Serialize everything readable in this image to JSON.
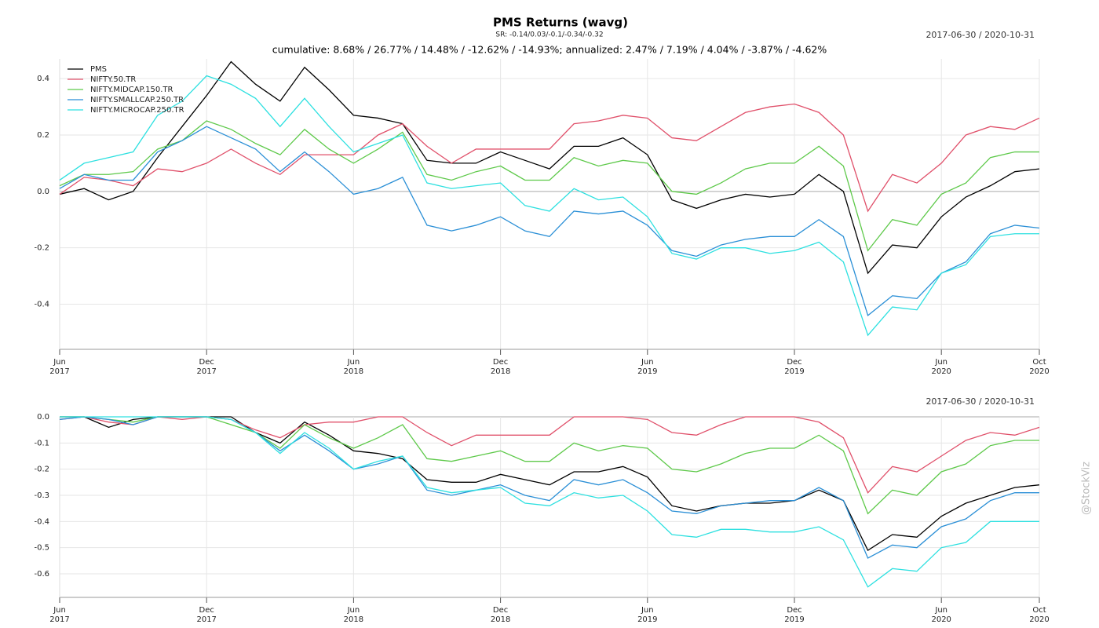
{
  "title": "PMS Returns (wavg)",
  "subtitle": "SR: -0.14/0.03/-0.1/-0.34/-0.32",
  "watermark": "@StockViz",
  "chart_data": [
    {
      "type": "line",
      "annotation": "cumulative: 8.68% / 26.77% / 14.48% / -12.62% / -14.93%; annualized: 2.47% / 7.19% / 4.04% / -3.87% / -4.62%",
      "date_range": "2017-06-30 / 2020-10-31",
      "legend": "upper left",
      "grid": true,
      "x": [
        "2017-06",
        "2017-07",
        "2017-08",
        "2017-09",
        "2017-10",
        "2017-11",
        "2017-12",
        "2018-01",
        "2018-02",
        "2018-03",
        "2018-04",
        "2018-05",
        "2018-06",
        "2018-07",
        "2018-08",
        "2018-09",
        "2018-10",
        "2018-11",
        "2018-12",
        "2019-01",
        "2019-02",
        "2019-03",
        "2019-04",
        "2019-05",
        "2019-06",
        "2019-07",
        "2019-08",
        "2019-09",
        "2019-10",
        "2019-11",
        "2019-12",
        "2020-01",
        "2020-02",
        "2020-03",
        "2020-04",
        "2020-05",
        "2020-06",
        "2020-07",
        "2020-08",
        "2020-09",
        "2020-10"
      ],
      "xlim": [
        "2017-06",
        "2020-10"
      ],
      "xticks": [
        {
          "value": "2017-06",
          "label": [
            "Jun",
            "2017"
          ]
        },
        {
          "value": "2017-12",
          "label": [
            "Dec",
            "2017"
          ]
        },
        {
          "value": "2018-06",
          "label": [
            "Jun",
            "2018"
          ]
        },
        {
          "value": "2018-12",
          "label": [
            "Dec",
            "2018"
          ]
        },
        {
          "value": "2019-06",
          "label": [
            "Jun",
            "2019"
          ]
        },
        {
          "value": "2019-12",
          "label": [
            "Dec",
            "2019"
          ]
        },
        {
          "value": "2020-06",
          "label": [
            "Jun",
            "2020"
          ]
        },
        {
          "value": "2020-10",
          "label": [
            "Oct",
            "2020"
          ]
        }
      ],
      "ylim": [
        -0.56,
        0.47
      ],
      "yticks": [
        -0.4,
        -0.2,
        {
          "value": 0,
          "label": "0.0"
        },
        0.2,
        0.4
      ],
      "series": [
        {
          "name": "PMS",
          "color": "#000000",
          "values": [
            -0.01,
            0.01,
            -0.03,
            0.0,
            0.12,
            0.23,
            0.34,
            0.46,
            0.38,
            0.32,
            0.44,
            0.36,
            0.27,
            0.26,
            0.24,
            0.11,
            0.1,
            0.1,
            0.14,
            0.11,
            0.08,
            0.16,
            0.16,
            0.19,
            0.13,
            -0.03,
            -0.06,
            -0.03,
            -0.01,
            -0.02,
            -0.01,
            0.06,
            0.0,
            -0.29,
            -0.19,
            -0.2,
            -0.09,
            -0.02,
            0.02,
            0.07,
            0.08
          ]
        },
        {
          "name": "NIFTY.50.TR",
          "color": "#e0506a",
          "values": [
            -0.01,
            0.05,
            0.04,
            0.02,
            0.08,
            0.07,
            0.1,
            0.15,
            0.1,
            0.06,
            0.13,
            0.13,
            0.13,
            0.2,
            0.24,
            0.16,
            0.1,
            0.15,
            0.15,
            0.15,
            0.15,
            0.24,
            0.25,
            0.27,
            0.26,
            0.19,
            0.18,
            0.23,
            0.28,
            0.3,
            0.31,
            0.28,
            0.2,
            -0.07,
            0.06,
            0.03,
            0.1,
            0.2,
            0.23,
            0.22,
            0.26
          ]
        },
        {
          "name": "NIFTY.MIDCAP.150.TR",
          "color": "#5ec94a",
          "values": [
            0.02,
            0.06,
            0.06,
            0.07,
            0.15,
            0.18,
            0.25,
            0.22,
            0.17,
            0.13,
            0.22,
            0.15,
            0.1,
            0.15,
            0.21,
            0.06,
            0.04,
            0.07,
            0.09,
            0.04,
            0.04,
            0.12,
            0.09,
            0.11,
            0.1,
            0.0,
            -0.01,
            0.03,
            0.08,
            0.1,
            0.1,
            0.16,
            0.09,
            -0.21,
            -0.1,
            -0.12,
            -0.01,
            0.03,
            0.12,
            0.14,
            0.14
          ]
        },
        {
          "name": "NIFTY.SMALLCAP.250.TR",
          "color": "#2a8fd6",
          "values": [
            0.01,
            0.06,
            0.04,
            0.04,
            0.14,
            0.18,
            0.23,
            0.19,
            0.15,
            0.07,
            0.14,
            0.07,
            -0.01,
            0.01,
            0.05,
            -0.12,
            -0.14,
            -0.12,
            -0.09,
            -0.14,
            -0.16,
            -0.07,
            -0.08,
            -0.07,
            -0.12,
            -0.21,
            -0.23,
            -0.19,
            -0.17,
            -0.16,
            -0.16,
            -0.1,
            -0.16,
            -0.44,
            -0.37,
            -0.38,
            -0.29,
            -0.25,
            -0.15,
            -0.12,
            -0.13
          ]
        },
        {
          "name": "NIFTY.MICROCAP.250.TR",
          "color": "#2de0e0",
          "values": [
            0.04,
            0.1,
            0.12,
            0.14,
            0.27,
            0.32,
            0.41,
            0.38,
            0.33,
            0.23,
            0.33,
            0.23,
            0.14,
            0.17,
            0.2,
            0.03,
            0.01,
            0.02,
            0.03,
            -0.05,
            -0.07,
            0.01,
            -0.03,
            -0.02,
            -0.09,
            -0.22,
            -0.24,
            -0.2,
            -0.2,
            -0.22,
            -0.21,
            -0.18,
            -0.25,
            -0.51,
            -0.41,
            -0.42,
            -0.29,
            -0.26,
            -0.16,
            -0.15,
            -0.15
          ]
        }
      ]
    },
    {
      "type": "line",
      "date_range": "2017-06-30 / 2020-10-31",
      "grid": true,
      "x": [
        "2017-06",
        "2017-07",
        "2017-08",
        "2017-09",
        "2017-10",
        "2017-11",
        "2017-12",
        "2018-01",
        "2018-02",
        "2018-03",
        "2018-04",
        "2018-05",
        "2018-06",
        "2018-07",
        "2018-08",
        "2018-09",
        "2018-10",
        "2018-11",
        "2018-12",
        "2019-01",
        "2019-02",
        "2019-03",
        "2019-04",
        "2019-05",
        "2019-06",
        "2019-07",
        "2019-08",
        "2019-09",
        "2019-10",
        "2019-11",
        "2019-12",
        "2020-01",
        "2020-02",
        "2020-03",
        "2020-04",
        "2020-05",
        "2020-06",
        "2020-07",
        "2020-08",
        "2020-09",
        "2020-10"
      ],
      "xlim": [
        "2017-06",
        "2020-10"
      ],
      "xticks": [
        {
          "value": "2017-06",
          "label": [
            "Jun",
            "2017"
          ]
        },
        {
          "value": "2017-12",
          "label": [
            "Dec",
            "2017"
          ]
        },
        {
          "value": "2018-06",
          "label": [
            "Jun",
            "2018"
          ]
        },
        {
          "value": "2018-12",
          "label": [
            "Dec",
            "2018"
          ]
        },
        {
          "value": "2019-06",
          "label": [
            "Jun",
            "2019"
          ]
        },
        {
          "value": "2019-12",
          "label": [
            "Dec",
            "2019"
          ]
        },
        {
          "value": "2020-06",
          "label": [
            "Jun",
            "2020"
          ]
        },
        {
          "value": "2020-10",
          "label": [
            "Oct",
            "2020"
          ]
        }
      ],
      "ylim": [
        -0.69,
        0.0
      ],
      "yticks": [
        -0.6,
        -0.5,
        -0.4,
        -0.3,
        -0.2,
        -0.1,
        {
          "value": 0,
          "label": "0.0"
        }
      ],
      "series": [
        {
          "color": "#000000",
          "values": [
            0,
            0,
            -0.04,
            -0.01,
            0,
            0,
            0,
            0,
            -0.06,
            -0.1,
            -0.02,
            -0.07,
            -0.13,
            -0.14,
            -0.16,
            -0.24,
            -0.25,
            -0.25,
            -0.22,
            -0.24,
            -0.26,
            -0.21,
            -0.21,
            -0.19,
            -0.23,
            -0.34,
            -0.36,
            -0.34,
            -0.33,
            -0.33,
            -0.32,
            -0.28,
            -0.32,
            -0.51,
            -0.45,
            -0.46,
            -0.38,
            -0.33,
            -0.3,
            -0.27,
            -0.26
          ]
        },
        {
          "color": "#e0506a",
          "values": [
            -0.01,
            0,
            -0.02,
            -0.03,
            0,
            -0.01,
            0,
            -0.01,
            -0.05,
            -0.08,
            -0.03,
            -0.02,
            -0.02,
            0,
            0,
            -0.06,
            -0.11,
            -0.07,
            -0.07,
            -0.07,
            -0.07,
            0,
            0,
            0,
            -0.01,
            -0.06,
            -0.07,
            -0.03,
            0,
            0,
            0,
            -0.02,
            -0.08,
            -0.29,
            -0.19,
            -0.21,
            -0.15,
            -0.09,
            -0.06,
            -0.07,
            -0.04
          ]
        },
        {
          "color": "#5ec94a",
          "values": [
            0,
            0,
            -0.01,
            -0.02,
            0,
            0,
            0,
            -0.03,
            -0.06,
            -0.12,
            -0.03,
            -0.08,
            -0.12,
            -0.08,
            -0.03,
            -0.16,
            -0.17,
            -0.15,
            -0.13,
            -0.17,
            -0.17,
            -0.1,
            -0.13,
            -0.11,
            -0.12,
            -0.2,
            -0.21,
            -0.18,
            -0.14,
            -0.12,
            -0.12,
            -0.07,
            -0.13,
            -0.37,
            -0.28,
            -0.3,
            -0.21,
            -0.18,
            -0.11,
            -0.09,
            -0.09
          ]
        },
        {
          "color": "#2a8fd6",
          "values": [
            -0.01,
            0,
            -0.01,
            -0.03,
            0,
            0,
            0,
            -0.01,
            -0.06,
            -0.13,
            -0.07,
            -0.13,
            -0.2,
            -0.18,
            -0.15,
            -0.28,
            -0.3,
            -0.28,
            -0.26,
            -0.3,
            -0.32,
            -0.24,
            -0.26,
            -0.24,
            -0.29,
            -0.36,
            -0.37,
            -0.34,
            -0.33,
            -0.32,
            -0.32,
            -0.27,
            -0.32,
            -0.54,
            -0.49,
            -0.5,
            -0.42,
            -0.39,
            -0.32,
            -0.29,
            -0.29
          ]
        },
        {
          "color": "#2de0e0",
          "values": [
            0,
            0,
            0,
            0,
            0,
            0,
            0,
            -0.01,
            -0.06,
            -0.14,
            -0.06,
            -0.12,
            -0.2,
            -0.17,
            -0.15,
            -0.27,
            -0.29,
            -0.28,
            -0.27,
            -0.33,
            -0.34,
            -0.29,
            -0.31,
            -0.3,
            -0.36,
            -0.45,
            -0.46,
            -0.43,
            -0.43,
            -0.44,
            -0.44,
            -0.42,
            -0.47,
            -0.65,
            -0.58,
            -0.59,
            -0.5,
            -0.48,
            -0.4,
            -0.4,
            -0.4
          ]
        }
      ]
    }
  ]
}
